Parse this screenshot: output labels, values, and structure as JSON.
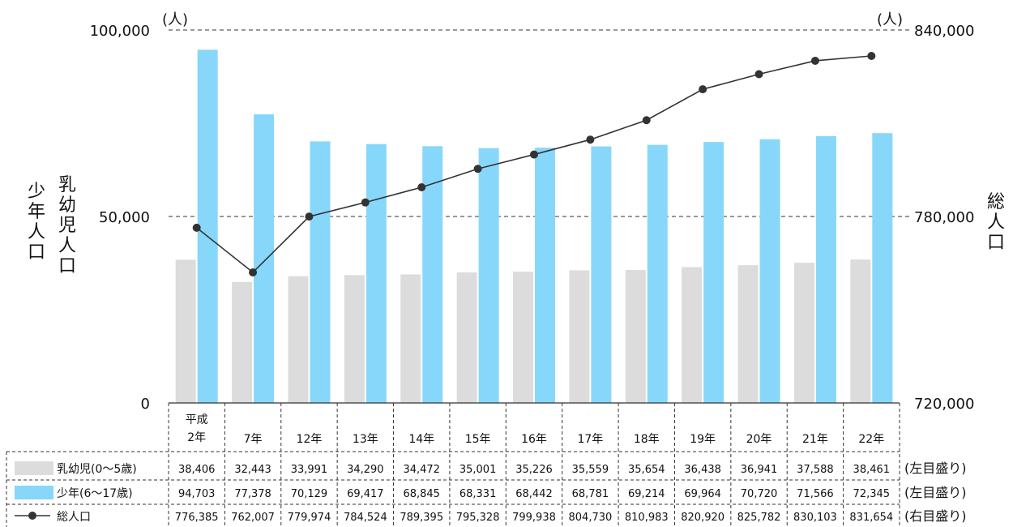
{
  "chart_data": {
    "type": "bar",
    "categories": [
      "平成2年",
      "7年",
      "12年",
      "13年",
      "14年",
      "15年",
      "16年",
      "17年",
      "18年",
      "19年",
      "20年",
      "21年",
      "22年"
    ],
    "series": [
      {
        "name": "乳幼児(0～5歳)",
        "type": "bar",
        "axis": "left",
        "color": "#dcdcdc",
        "values": [
          38406,
          32443,
          33991,
          34290,
          34472,
          35001,
          35226,
          35559,
          35654,
          36438,
          36941,
          37588,
          38461
        ],
        "labels": [
          "38,406",
          "32,443",
          "33,991",
          "34,290",
          "34,472",
          "35,001",
          "35,226",
          "35,559",
          "35,654",
          "36,438",
          "36,941",
          "37,588",
          "38,461"
        ],
        "scale_note": "(左目盛り)"
      },
      {
        "name": "少年(6～17歳)",
        "type": "bar",
        "axis": "left",
        "color": "#87d7fa",
        "values": [
          94703,
          77378,
          70129,
          69417,
          68845,
          68331,
          68442,
          68781,
          69214,
          69964,
          70720,
          71566,
          72345
        ],
        "labels": [
          "94,703",
          "77,378",
          "70,129",
          "69,417",
          "68,845",
          "68,331",
          "68,442",
          "68,781",
          "69,214",
          "69,964",
          "70,720",
          "71,566",
          "72,345"
        ],
        "scale_note": "(左目盛り)"
      },
      {
        "name": "総人口",
        "type": "line",
        "axis": "right",
        "color": "#333333",
        "values": [
          776385,
          762007,
          779974,
          784524,
          789395,
          795328,
          799938,
          804730,
          810983,
          820920,
          825782,
          830103,
          831654
        ],
        "labels": [
          "776,385",
          "762,007",
          "779,974",
          "784,524",
          "789,395",
          "795,328",
          "799,938",
          "804,730",
          "810,983",
          "820,920",
          "825,782",
          "830,103",
          "831,654"
        ],
        "scale_note": "(右目盛り)"
      }
    ],
    "left_axis": {
      "ylim": [
        0,
        100000
      ],
      "ticks": [
        0,
        50000,
        100000
      ],
      "tick_labels": [
        "0",
        "50,000",
        "100,000"
      ],
      "unit": "(人)",
      "title_lines": [
        "乳幼児人口",
        "少年人口"
      ]
    },
    "right_axis": {
      "ylim": [
        720000,
        840000
      ],
      "ticks": [
        720000,
        780000,
        840000
      ],
      "tick_labels": [
        "720,000",
        "780,000",
        "840,000"
      ],
      "unit": "(人)",
      "title": "総人口"
    },
    "grid": "dashed horizontal at major ticks",
    "legend": "data table below chart"
  }
}
